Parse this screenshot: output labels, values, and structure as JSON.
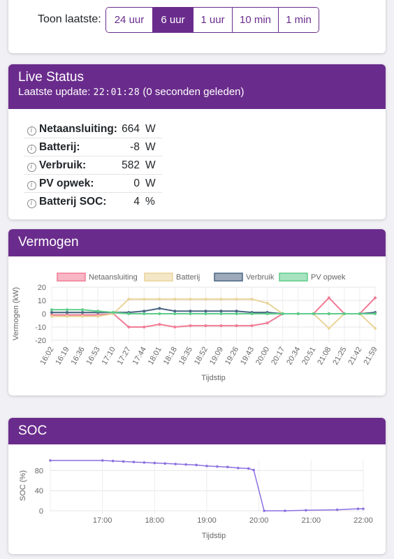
{
  "range": {
    "label": "Toon laatste:",
    "options": [
      "24 uur",
      "6 uur",
      "1 uur",
      "10 min",
      "1 min"
    ],
    "active_index": 1
  },
  "live": {
    "title": "Live Status",
    "update_prefix": "Laatste update:",
    "update_time": "22:01:28",
    "update_suffix": "(0 seconden geleden)",
    "rows": [
      {
        "label": "Netaansluiting:",
        "value": "664",
        "unit": "W"
      },
      {
        "label": "Batterij:",
        "value": "-8",
        "unit": "W"
      },
      {
        "label": "Verbruik:",
        "value": "582",
        "unit": "W"
      },
      {
        "label": "PV opwek:",
        "value": "0",
        "unit": "W"
      },
      {
        "label": "Batterij SOC:",
        "value": "4",
        "unit": "%"
      }
    ]
  },
  "vermogen": {
    "title": "Vermogen",
    "chart_data": {
      "type": "line",
      "ylabel": "Vermogen (kW)",
      "xlabel": "Tijdstip",
      "ylim": [
        -20,
        20
      ],
      "yticks": [
        "20",
        "10",
        "0",
        "-10",
        "-20"
      ],
      "categories": [
        "16:02",
        "16:19",
        "16:36",
        "16:53",
        "17:10",
        "17:27",
        "17:44",
        "18:01",
        "18:18",
        "18:35",
        "18:52",
        "19:09",
        "19:26",
        "19:43",
        "20:00",
        "20:17",
        "20:34",
        "20:51",
        "21:08",
        "21:25",
        "21:42",
        "21:59"
      ],
      "legend": [
        "Netaansluiting",
        "Batterij",
        "Verbruik",
        "PV opwek"
      ],
      "legend_position": "top",
      "colors": {
        "Netaansluiting": "#f17b95",
        "Batterij": "#ead49a",
        "Verbruik": "#4a6583",
        "PV opwek": "#5ecc8a"
      },
      "series": [
        {
          "name": "Netaansluiting",
          "values": [
            -1,
            -1,
            -1,
            -1,
            0,
            -10,
            -10,
            -8,
            -10,
            -9,
            -9,
            -9,
            -9,
            -9,
            -7,
            0,
            0,
            0,
            12,
            0,
            0,
            12
          ]
        },
        {
          "name": "Batterij",
          "values": [
            -2,
            -2,
            -2,
            -2,
            0,
            11,
            11,
            11,
            11,
            11,
            11,
            11,
            11,
            11,
            8,
            0,
            0,
            0,
            -11,
            0,
            0,
            -11
          ]
        },
        {
          "name": "Verbruik",
          "values": [
            1,
            1,
            1,
            1,
            1,
            1,
            2,
            4,
            2,
            2,
            2,
            2,
            2,
            1,
            1,
            0,
            0,
            0,
            0,
            0,
            0,
            1
          ]
        },
        {
          "name": "PV opwek",
          "values": [
            3,
            3,
            3,
            2,
            1,
            0,
            0,
            0,
            0,
            0,
            0,
            0,
            0,
            0,
            0,
            0,
            0,
            0,
            0,
            0,
            0,
            0
          ]
        }
      ]
    }
  },
  "soc": {
    "title": "SOC",
    "chart_data": {
      "type": "line",
      "ylabel": "SOC (%)",
      "xlabel": "Tijdstip",
      "ylim": [
        0,
        100
      ],
      "yticks": [
        "80",
        "40",
        "0"
      ],
      "xticks": [
        "17:00",
        "18:00",
        "19:00",
        "20:00",
        "21:00",
        "22:00"
      ],
      "x_hours": [
        16.0,
        17.0,
        17.2,
        17.4,
        17.6,
        17.8,
        18.0,
        18.2,
        18.4,
        18.6,
        18.8,
        19.0,
        19.2,
        19.4,
        19.6,
        19.8,
        19.9,
        20.1,
        20.5,
        20.9,
        21.5,
        21.9,
        22.0
      ],
      "values": [
        100,
        100,
        99,
        98,
        97,
        96,
        95,
        94,
        93,
        92,
        91,
        89,
        88,
        87,
        85,
        84,
        81,
        0,
        0,
        1,
        2,
        4,
        4
      ],
      "color": "#8c6fe0"
    }
  }
}
